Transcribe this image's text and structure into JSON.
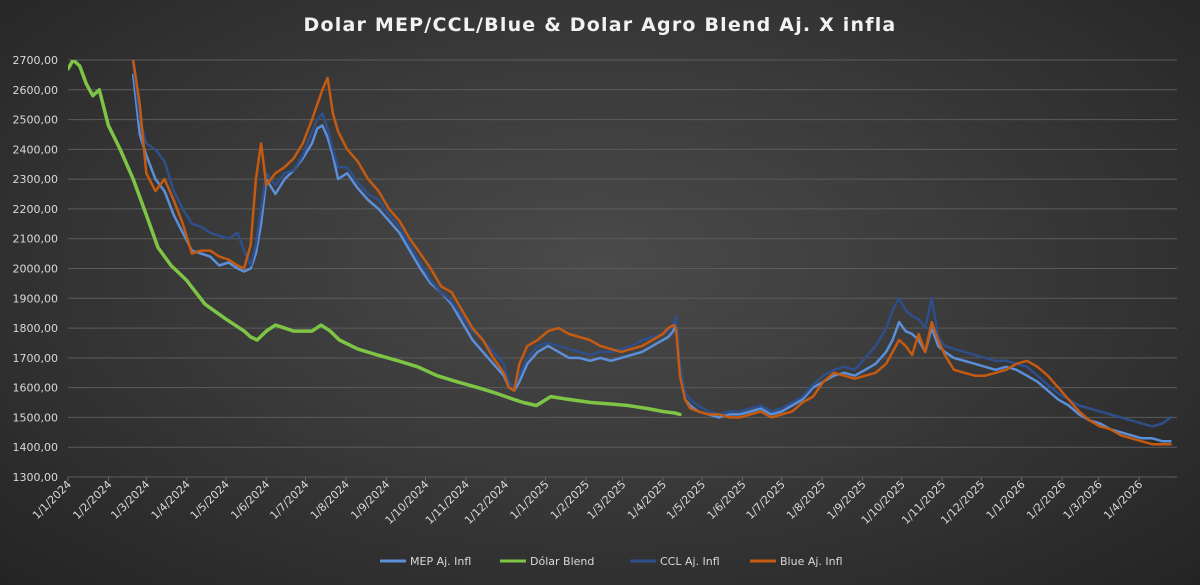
{
  "chart_data": {
    "type": "line",
    "title": "Dolar MEP/CCL/Blue & Dolar Agro Blend Aj. X infla",
    "xlabel": "",
    "ylabel": "",
    "ylim": [
      1300,
      2700
    ],
    "xlim": [
      "2024-01-01",
      "2026-04-30"
    ],
    "grid": true,
    "legend_position": "bottom",
    "y_ticks": [
      "1300,00",
      "1400,00",
      "1500,00",
      "1600,00",
      "1700,00",
      "1800,00",
      "1900,00",
      "2000,00",
      "2100,00",
      "2200,00",
      "2300,00",
      "2400,00",
      "2500,00",
      "2600,00",
      "2700,00"
    ],
    "x_ticks": [
      "1/1/2024",
      "1/2/2024",
      "1/3/2024",
      "1/4/2024",
      "1/5/2024",
      "1/6/2024",
      "1/7/2024",
      "1/8/2024",
      "1/9/2024",
      "1/10/2024",
      "1/11/2024",
      "1/12/2024",
      "1/1/2025",
      "1/2/2025",
      "1/3/2025",
      "1/4/2025",
      "1/5/2025",
      "1/6/2025",
      "1/7/2025",
      "1/8/2025",
      "1/9/2025",
      "1/10/2025",
      "1/11/2025",
      "1/12/2025",
      "1/1/2026",
      "1/2/2026",
      "1/3/2026",
      "1/4/2026"
    ],
    "series": [
      {
        "name": "MEP Aj. Infl",
        "color": "#5b8fd9",
        "width": 2.5,
        "x": [
          "2024-02-20",
          "2024-02-25",
          "2024-03-01",
          "2024-03-08",
          "2024-03-15",
          "2024-03-22",
          "2024-03-29",
          "2024-04-05",
          "2024-04-12",
          "2024-04-19",
          "2024-04-26",
          "2024-05-03",
          "2024-05-10",
          "2024-05-15",
          "2024-05-20",
          "2024-05-24",
          "2024-05-28",
          "2024-06-01",
          "2024-06-08",
          "2024-06-15",
          "2024-06-22",
          "2024-06-29",
          "2024-07-06",
          "2024-07-10",
          "2024-07-14",
          "2024-07-18",
          "2024-07-22",
          "2024-07-26",
          "2024-08-02",
          "2024-08-10",
          "2024-08-18",
          "2024-08-26",
          "2024-09-03",
          "2024-09-11",
          "2024-09-19",
          "2024-09-27",
          "2024-10-05",
          "2024-10-13",
          "2024-10-21",
          "2024-10-29",
          "2024-11-06",
          "2024-11-14",
          "2024-11-22",
          "2024-11-30",
          "2024-12-04",
          "2024-12-08",
          "2024-12-12",
          "2024-12-18",
          "2024-12-26",
          "2025-01-03",
          "2025-01-11",
          "2025-01-19",
          "2025-01-27",
          "2025-02-04",
          "2025-02-12",
          "2025-02-20",
          "2025-02-28",
          "2025-03-08",
          "2025-03-16",
          "2025-03-24",
          "2025-04-01",
          "2025-04-05",
          "2025-04-09",
          "2025-04-11",
          "2025-04-14",
          "2025-04-18",
          "2025-04-22",
          "2025-04-28",
          "2025-05-06",
          "2025-05-14",
          "2025-05-22",
          "2025-05-30",
          "2025-06-07",
          "2025-06-15",
          "2025-06-23",
          "2025-07-01",
          "2025-07-09",
          "2025-07-17",
          "2025-07-25",
          "2025-08-02",
          "2025-08-10",
          "2025-08-18",
          "2025-08-26",
          "2025-09-03",
          "2025-09-11",
          "2025-09-19",
          "2025-09-24",
          "2025-09-29",
          "2025-10-04",
          "2025-10-09",
          "2025-10-14",
          "2025-10-19",
          "2025-10-24",
          "2025-10-29",
          "2025-11-03",
          "2025-11-10",
          "2025-11-18",
          "2025-11-26",
          "2025-12-04",
          "2025-12-12",
          "2025-12-20",
          "2025-12-28",
          "2026-01-05",
          "2026-01-13",
          "2026-01-21",
          "2026-01-29",
          "2026-02-06",
          "2026-02-14",
          "2026-02-22",
          "2026-03-02",
          "2026-03-10",
          "2026-03-18",
          "2026-03-26",
          "2026-04-03",
          "2026-04-11",
          "2026-04-19",
          "2026-04-25"
        ],
        "values": [
          2650,
          2450,
          2380,
          2300,
          2260,
          2180,
          2120,
          2060,
          2050,
          2040,
          2010,
          2020,
          2000,
          1990,
          2000,
          2050,
          2150,
          2300,
          2250,
          2300,
          2330,
          2370,
          2420,
          2470,
          2480,
          2440,
          2380,
          2300,
          2320,
          2270,
          2230,
          2200,
          2160,
          2120,
          2060,
          2000,
          1950,
          1920,
          1880,
          1820,
          1760,
          1720,
          1680,
          1640,
          1600,
          1590,
          1620,
          1680,
          1720,
          1740,
          1720,
          1700,
          1700,
          1690,
          1700,
          1690,
          1700,
          1710,
          1720,
          1740,
          1760,
          1770,
          1790,
          1820,
          1650,
          1560,
          1540,
          1520,
          1510,
          1500,
          1510,
          1510,
          1520,
          1530,
          1510,
          1520,
          1540,
          1560,
          1600,
          1620,
          1640,
          1650,
          1640,
          1660,
          1680,
          1720,
          1760,
          1820,
          1790,
          1780,
          1760,
          1720,
          1800,
          1740,
          1720,
          1700,
          1690,
          1680,
          1670,
          1660,
          1670,
          1660,
          1640,
          1620,
          1590,
          1560,
          1540,
          1510,
          1490,
          1480,
          1460,
          1450,
          1440,
          1430,
          1430,
          1420,
          1420
        ]
      },
      {
        "name": "Dólar Blend",
        "color": "#7ec445",
        "width": 3.5,
        "x": [
          "2024-01-01",
          "2024-01-05",
          "2024-01-10",
          "2024-01-15",
          "2024-01-20",
          "2024-01-25",
          "2024-02-01",
          "2024-02-10",
          "2024-02-20",
          "2024-03-01",
          "2024-03-10",
          "2024-03-20",
          "2024-04-01",
          "2024-04-15",
          "2024-05-01",
          "2024-05-15",
          "2024-05-20",
          "2024-05-25",
          "2024-06-01",
          "2024-06-08",
          "2024-06-15",
          "2024-06-22",
          "2024-06-29",
          "2024-07-06",
          "2024-07-13",
          "2024-07-20",
          "2024-07-27",
          "2024-08-10",
          "2024-08-25",
          "2024-09-10",
          "2024-09-25",
          "2024-10-10",
          "2024-10-25",
          "2024-11-10",
          "2024-11-25",
          "2024-12-08",
          "2024-12-15",
          "2024-12-25",
          "2025-01-05",
          "2025-01-20",
          "2025-02-05",
          "2025-02-20",
          "2025-03-05",
          "2025-03-20",
          "2025-04-01",
          "2025-04-10",
          "2025-04-14"
        ],
        "values": [
          2670,
          2700,
          2680,
          2620,
          2580,
          2600,
          2480,
          2400,
          2300,
          2180,
          2070,
          2010,
          1960,
          1880,
          1830,
          1790,
          1770,
          1760,
          1790,
          1810,
          1800,
          1790,
          1790,
          1790,
          1810,
          1790,
          1760,
          1730,
          1710,
          1690,
          1670,
          1640,
          1620,
          1600,
          1580,
          1560,
          1550,
          1540,
          1570,
          1560,
          1550,
          1545,
          1540,
          1530,
          1520,
          1515,
          1510
        ]
      },
      {
        "name": "CCL Aj. Infl",
        "color": "#2f4f8a",
        "width": 2.5,
        "x": [
          "2024-02-20",
          "2024-02-25",
          "2024-03-01",
          "2024-03-08",
          "2024-03-15",
          "2024-03-22",
          "2024-03-29",
          "2024-04-05",
          "2024-04-12",
          "2024-04-19",
          "2024-04-26",
          "2024-05-03",
          "2024-05-10",
          "2024-05-15",
          "2024-05-20",
          "2024-05-24",
          "2024-05-28",
          "2024-06-01",
          "2024-06-08",
          "2024-06-15",
          "2024-06-22",
          "2024-06-29",
          "2024-07-06",
          "2024-07-10",
          "2024-07-14",
          "2024-07-18",
          "2024-07-22",
          "2024-07-26",
          "2024-08-02",
          "2024-08-10",
          "2024-08-18",
          "2024-08-26",
          "2024-09-03",
          "2024-09-11",
          "2024-09-19",
          "2024-09-27",
          "2024-10-05",
          "2024-10-13",
          "2024-10-21",
          "2024-10-29",
          "2024-11-06",
          "2024-11-14",
          "2024-11-22",
          "2024-11-30",
          "2024-12-04",
          "2024-12-08",
          "2024-12-12",
          "2024-12-18",
          "2024-12-26",
          "2025-01-03",
          "2025-01-11",
          "2025-01-19",
          "2025-01-27",
          "2025-02-04",
          "2025-02-12",
          "2025-02-20",
          "2025-02-28",
          "2025-03-08",
          "2025-03-16",
          "2025-03-24",
          "2025-04-01",
          "2025-04-05",
          "2025-04-09",
          "2025-04-11",
          "2025-04-14",
          "2025-04-18",
          "2025-04-22",
          "2025-04-28",
          "2025-05-06",
          "2025-05-14",
          "2025-05-22",
          "2025-05-30",
          "2025-06-07",
          "2025-06-15",
          "2025-06-23",
          "2025-07-01",
          "2025-07-09",
          "2025-07-17",
          "2025-07-25",
          "2025-08-02",
          "2025-08-10",
          "2025-08-18",
          "2025-08-26",
          "2025-09-03",
          "2025-09-11",
          "2025-09-19",
          "2025-09-24",
          "2025-09-29",
          "2025-10-04",
          "2025-10-09",
          "2025-10-14",
          "2025-10-19",
          "2025-10-24",
          "2025-10-29",
          "2025-11-03",
          "2025-11-10",
          "2025-11-18",
          "2025-11-26",
          "2025-12-04",
          "2025-12-12",
          "2025-12-20",
          "2025-12-28",
          "2026-01-05",
          "2026-01-13",
          "2026-01-21",
          "2026-01-29",
          "2026-02-06",
          "2026-02-14",
          "2026-02-22",
          "2026-03-02",
          "2026-03-10",
          "2026-03-18",
          "2026-03-26",
          "2026-04-03",
          "2026-04-11",
          "2026-04-19",
          "2026-04-25"
        ],
        "values": [
          2690,
          2500,
          2420,
          2400,
          2360,
          2260,
          2200,
          2150,
          2140,
          2120,
          2110,
          2100,
          2120,
          2060,
          2010,
          2080,
          2200,
          2320,
          2280,
          2320,
          2330,
          2380,
          2460,
          2500,
          2520,
          2470,
          2400,
          2340,
          2340,
          2290,
          2250,
          2230,
          2180,
          2140,
          2080,
          2020,
          1960,
          1920,
          1890,
          1840,
          1790,
          1760,
          1720,
          1680,
          1620,
          1600,
          1640,
          1700,
          1740,
          1750,
          1740,
          1730,
          1720,
          1710,
          1720,
          1720,
          1730,
          1740,
          1760,
          1770,
          1780,
          1790,
          1810,
          1840,
          1680,
          1580,
          1560,
          1540,
          1520,
          1510,
          1520,
          1520,
          1530,
          1540,
          1520,
          1530,
          1550,
          1570,
          1610,
          1640,
          1660,
          1670,
          1660,
          1700,
          1740,
          1800,
          1860,
          1900,
          1860,
          1840,
          1830,
          1800,
          1900,
          1770,
          1740,
          1730,
          1720,
          1710,
          1700,
          1690,
          1690,
          1680,
          1670,
          1640,
          1610,
          1580,
          1560,
          1540,
          1530,
          1520,
          1510,
          1500,
          1490,
          1480,
          1470,
          1480,
          1500
        ]
      },
      {
        "name": "Blue Aj. Infl",
        "color": "#c55a11",
        "width": 2.5,
        "x": [
          "2024-02-20",
          "2024-02-25",
          "2024-03-01",
          "2024-03-08",
          "2024-03-15",
          "2024-03-22",
          "2024-03-29",
          "2024-04-05",
          "2024-04-12",
          "2024-04-19",
          "2024-04-26",
          "2024-05-03",
          "2024-05-10",
          "2024-05-15",
          "2024-05-20",
          "2024-05-24",
          "2024-05-28",
          "2024-06-01",
          "2024-06-08",
          "2024-06-15",
          "2024-06-22",
          "2024-06-29",
          "2024-07-06",
          "2024-07-10",
          "2024-07-14",
          "2024-07-18",
          "2024-07-22",
          "2024-07-26",
          "2024-08-02",
          "2024-08-10",
          "2024-08-18",
          "2024-08-26",
          "2024-09-03",
          "2024-09-11",
          "2024-09-19",
          "2024-09-27",
          "2024-10-05",
          "2024-10-13",
          "2024-10-21",
          "2024-10-29",
          "2024-11-06",
          "2024-11-14",
          "2024-11-22",
          "2024-11-30",
          "2024-12-04",
          "2024-12-08",
          "2024-12-12",
          "2024-12-18",
          "2024-12-26",
          "2025-01-03",
          "2025-01-11",
          "2025-01-19",
          "2025-01-27",
          "2025-02-04",
          "2025-02-12",
          "2025-02-20",
          "2025-02-28",
          "2025-03-08",
          "2025-03-16",
          "2025-03-24",
          "2025-04-01",
          "2025-04-05",
          "2025-04-09",
          "2025-04-11",
          "2025-04-14",
          "2025-04-18",
          "2025-04-22",
          "2025-04-28",
          "2025-05-06",
          "2025-05-14",
          "2025-05-22",
          "2025-05-30",
          "2025-06-07",
          "2025-06-15",
          "2025-06-23",
          "2025-07-01",
          "2025-07-09",
          "2025-07-17",
          "2025-07-25",
          "2025-08-02",
          "2025-08-10",
          "2025-08-18",
          "2025-08-26",
          "2025-09-03",
          "2025-09-11",
          "2025-09-19",
          "2025-09-24",
          "2025-09-29",
          "2025-10-04",
          "2025-10-09",
          "2025-10-14",
          "2025-10-19",
          "2025-10-24",
          "2025-10-29",
          "2025-11-03",
          "2025-11-10",
          "2025-11-18",
          "2025-11-26",
          "2025-12-04",
          "2025-12-12",
          "2025-12-20",
          "2025-12-28",
          "2026-01-05",
          "2026-01-13",
          "2026-01-21",
          "2026-01-29",
          "2026-02-06",
          "2026-02-14",
          "2026-02-22",
          "2026-03-02",
          "2026-03-10",
          "2026-03-18",
          "2026-03-26",
          "2026-04-03",
          "2026-04-11",
          "2026-04-19",
          "2026-04-25"
        ],
        "values": [
          2700,
          2550,
          2320,
          2260,
          2300,
          2230,
          2150,
          2050,
          2060,
          2060,
          2040,
          2030,
          2010,
          2000,
          2080,
          2300,
          2420,
          2280,
          2320,
          2340,
          2370,
          2420,
          2500,
          2550,
          2600,
          2640,
          2520,
          2460,
          2400,
          2360,
          2300,
          2260,
          2200,
          2160,
          2100,
          2050,
          2000,
          1940,
          1920,
          1860,
          1800,
          1760,
          1700,
          1650,
          1600,
          1590,
          1680,
          1740,
          1760,
          1790,
          1800,
          1780,
          1770,
          1760,
          1740,
          1730,
          1720,
          1730,
          1740,
          1760,
          1780,
          1800,
          1810,
          1800,
          1640,
          1560,
          1530,
          1520,
          1510,
          1510,
          1500,
          1500,
          1510,
          1520,
          1500,
          1510,
          1520,
          1550,
          1570,
          1620,
          1650,
          1640,
          1630,
          1640,
          1650,
          1680,
          1720,
          1760,
          1740,
          1710,
          1780,
          1720,
          1820,
          1760,
          1710,
          1660,
          1650,
          1640,
          1640,
          1650,
          1660,
          1680,
          1690,
          1670,
          1640,
          1600,
          1560,
          1520,
          1490,
          1470,
          1460,
          1440,
          1430,
          1420,
          1410,
          1410,
          1410
        ]
      }
    ]
  }
}
